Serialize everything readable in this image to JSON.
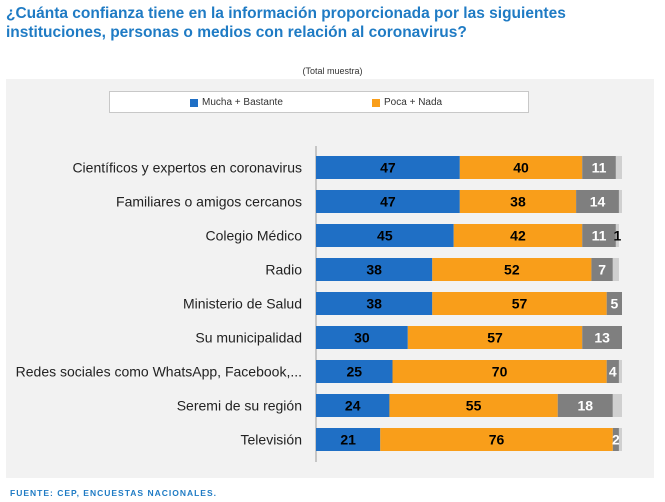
{
  "title": "¿Cuánta confianza tiene en la información proporcionada por las siguientes instituciones, personas o medios con relación al coronavirus?",
  "subtitle": "(Total muestra)",
  "footer": "FUENTE: CEP, ENCUESTAS NACIONALES.",
  "colors": {
    "title": "#1f7bc4",
    "series": [
      "#1f6fc5",
      "#f99e1a",
      "#7f7f7f",
      "#d0d0d0"
    ],
    "value_text": [
      "#000000",
      "#000000",
      "#ffffff",
      "#000000"
    ]
  },
  "chart_data": {
    "type": "bar",
    "orientation": "horizontal",
    "stacked": true,
    "xlim": [
      0,
      100
    ],
    "categories": [
      "Científicos y expertos en coronavirus",
      "Familiares o amigos cercanos",
      "Colegio Médico",
      "Radio",
      "Ministerio de Salud",
      "Su municipalidad",
      "Redes sociales como WhatsApp, Facebook,...",
      "Seremi de su región",
      "Televisión"
    ],
    "series": [
      {
        "name": "Mucha + Bastante",
        "values": [
          47,
          47,
          45,
          38,
          38,
          30,
          25,
          24,
          21
        ]
      },
      {
        "name": "Poca + Nada",
        "values": [
          40,
          38,
          42,
          52,
          57,
          57,
          70,
          55,
          76
        ]
      },
      {
        "values": [
          11,
          14,
          11,
          7,
          5,
          13,
          4,
          18,
          2
        ]
      },
      {
        "values": [
          2,
          1,
          1,
          2,
          0,
          0,
          1,
          3,
          1
        ]
      }
    ],
    "value_labels": [
      [
        "47",
        "40",
        "11",
        ""
      ],
      [
        "47",
        "38",
        "14",
        ""
      ],
      [
        "45",
        "42",
        "11",
        "1"
      ],
      [
        "38",
        "52",
        "7",
        ""
      ],
      [
        "38",
        "57",
        "5",
        ""
      ],
      [
        "30",
        "57",
        "13",
        ""
      ],
      [
        "25",
        "70",
        "4",
        ""
      ],
      [
        "24",
        "55",
        "18",
        ""
      ],
      [
        "21",
        "76",
        "2",
        ""
      ]
    ],
    "legend": {
      "position": "top"
    }
  }
}
